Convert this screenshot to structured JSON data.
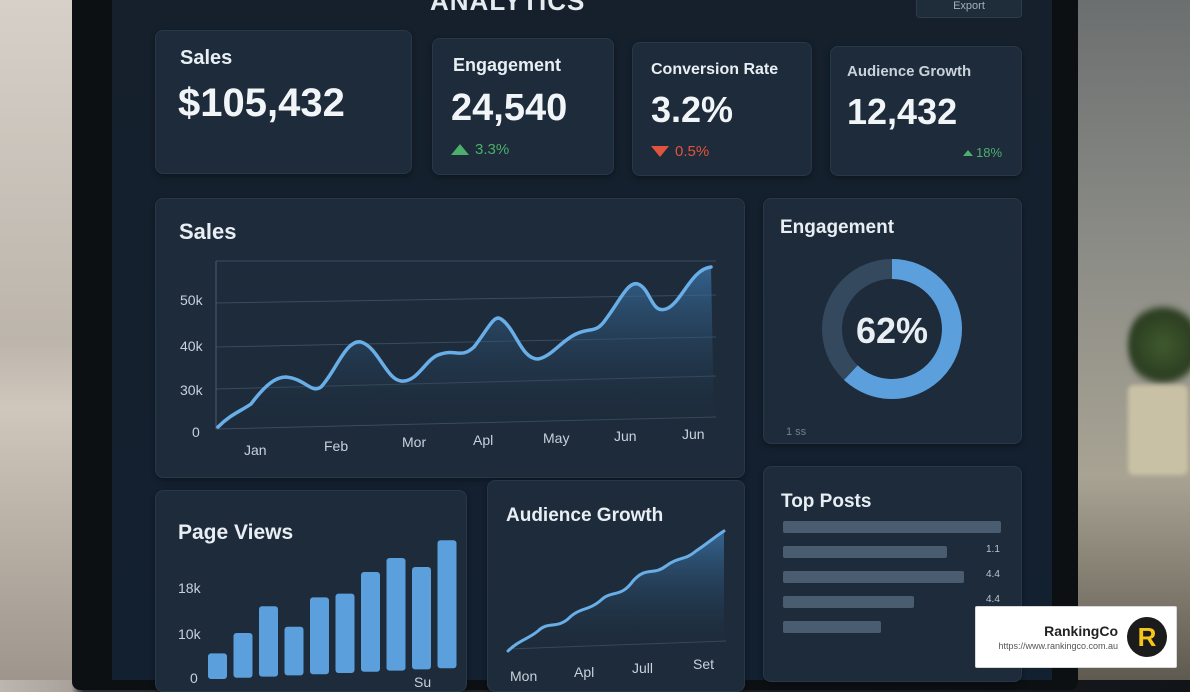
{
  "header": {
    "title": "ANALYTICS",
    "button_label": "Export"
  },
  "kpis": [
    {
      "label": "Sales",
      "value": "$105,432",
      "delta": ""
    },
    {
      "label": "Engagement",
      "value": "24,540",
      "delta": "3.3%",
      "trend": "up"
    },
    {
      "label": "Conversion Rate",
      "value": "3.2%",
      "delta": "0.5%",
      "trend": "down"
    },
    {
      "label": "Audience Growth",
      "value": "12,432",
      "delta": "18%",
      "trend": "up"
    }
  ],
  "sales_chart": {
    "title": "Sales",
    "y_ticks": [
      "50k",
      "40k",
      "30k",
      "0"
    ],
    "x_ticks": [
      "Jan",
      "Feb",
      "Mor",
      "Apl",
      "May",
      "Jun",
      "Jun"
    ]
  },
  "engagement_card": {
    "title": "Engagement",
    "value": "62%",
    "percent": 62,
    "footnote": "1 ss"
  },
  "page_views": {
    "title": "Page Views",
    "y_ticks": [
      "18k",
      "10k",
      "0"
    ],
    "bar_values": [
      0.2,
      0.35,
      0.55,
      0.38,
      0.6,
      0.62,
      0.78,
      0.88,
      0.8,
      1.0
    ],
    "x_ticks": [
      "",
      "Su"
    ]
  },
  "audience_growth": {
    "title": "Audience Growth",
    "x_ticks": [
      "Mon",
      "Apl",
      "Jull",
      "Set"
    ]
  },
  "top_posts": {
    "title": "Top Posts",
    "rows": [
      {
        "fill": 1.0,
        "value": ""
      },
      {
        "fill": 0.75,
        "value": "1.1"
      },
      {
        "fill": 0.83,
        "value": "4.4"
      },
      {
        "fill": 0.6,
        "value": "4.4"
      },
      {
        "fill": 0.45,
        "value": ""
      }
    ]
  },
  "badge": {
    "name": "RankingCo",
    "url": "https://www.rankingco.com.au",
    "logo_letter": "R"
  },
  "colors": {
    "accent": "#5b9fdc",
    "up": "#4caf6d",
    "down": "#e0533f",
    "card": "#1d2b3a"
  }
}
